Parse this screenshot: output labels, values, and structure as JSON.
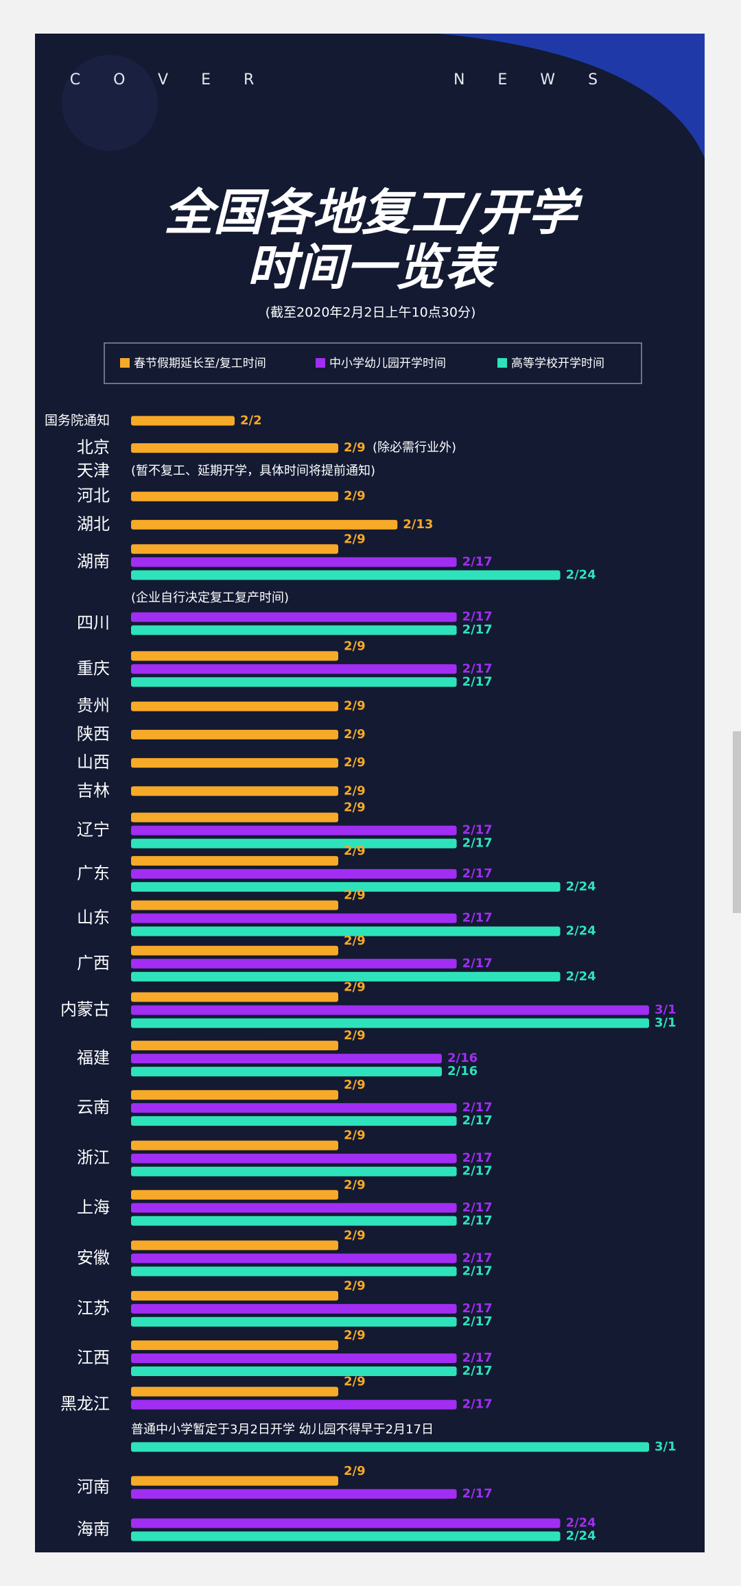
{
  "header": {
    "brand": [
      "COVER",
      "NEWS"
    ],
    "title": [
      "全国各地复工/开学",
      "时间一览表"
    ],
    "subtitle": "(截至2020年2月2日上午10点30分)"
  },
  "chart_data": {
    "type": "bar",
    "orientation": "horizontal",
    "xlim": [
      -5,
      30
    ],
    "categories": [
      "国务院通知",
      "北京",
      "天津",
      "河北",
      "湖北",
      "湖南",
      "四川",
      "重庆",
      "贵州",
      "陕西",
      "山西",
      "吉林",
      "辽宁",
      "广东",
      "山东",
      "广西",
      "内蒙古",
      "福建",
      "云南",
      "浙江",
      "上海",
      "安徽",
      "江苏",
      "江西",
      "黑龙江",
      "河南",
      "海南"
    ],
    "series": [
      {
        "name": "春节假期延长至/复工时间",
        "color": "#f7a928",
        "values": [
          2,
          9,
          null,
          9,
          13,
          9,
          null,
          9,
          9,
          9,
          9,
          9,
          9,
          9,
          9,
          9,
          9,
          9,
          9,
          9,
          9,
          9,
          9,
          9,
          9,
          9,
          null
        ],
        "value_labels": [
          "2/2",
          "2/9",
          null,
          "2/9",
          "2/13",
          "2/9",
          null,
          "2/9",
          "2/9",
          "2/9",
          "2/9",
          "2/9",
          "2/9",
          "2/9",
          "2/9",
          "2/9",
          "2/9",
          "2/9",
          "2/9",
          "2/9",
          "2/9",
          "2/9",
          "2/9",
          "2/9",
          "2/9",
          "2/9",
          null
        ]
      },
      {
        "name": "中小学幼儿园开学时间",
        "color": "#a12ef2",
        "values": [
          null,
          null,
          null,
          null,
          null,
          17,
          17,
          17,
          null,
          null,
          null,
          null,
          17,
          17,
          17,
          17,
          30,
          16,
          17,
          17,
          17,
          17,
          17,
          17,
          17,
          17,
          24
        ],
        "value_labels": [
          null,
          null,
          null,
          null,
          null,
          "2/17",
          "2/17",
          "2/17",
          null,
          null,
          null,
          null,
          "2/17",
          "2/17",
          "2/17",
          "2/17",
          "3/1",
          "2/16",
          "2/17",
          "2/17",
          "2/17",
          "2/17",
          "2/17",
          "2/17",
          "2/17",
          "2/17",
          "2/24"
        ]
      },
      {
        "name": "高等学校开学时间",
        "color": "#2ee3bb",
        "values": [
          null,
          null,
          null,
          null,
          null,
          24,
          17,
          17,
          null,
          null,
          null,
          null,
          17,
          24,
          24,
          24,
          30,
          16,
          17,
          17,
          17,
          17,
          17,
          17,
          30,
          null,
          24
        ],
        "value_labels": [
          null,
          null,
          null,
          null,
          null,
          "2/24",
          "2/17",
          "2/17",
          null,
          null,
          null,
          null,
          "2/17",
          "2/24",
          "2/24",
          "2/24",
          "3/1",
          "2/16",
          "2/17",
          "2/17",
          "2/17",
          "2/17",
          "2/17",
          "2/17",
          "3/1",
          null,
          "2/24"
        ]
      }
    ],
    "notes": [
      null,
      "(除必需行业外)",
      "(暂不复工、延期开学，具体时间将提前通知)",
      null,
      null,
      null,
      "(企业自行决定复工复产时间)",
      null,
      null,
      null,
      null,
      null,
      null,
      null,
      null,
      null,
      null,
      null,
      null,
      null,
      null,
      null,
      null,
      null,
      "普通中小学暂定于3月2日开学 幼儿园不得早于2月17日",
      null,
      null
    ]
  }
}
